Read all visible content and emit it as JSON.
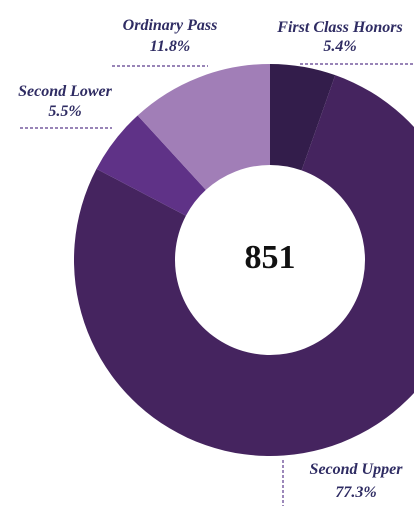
{
  "chart_data": {
    "type": "donut",
    "categories": [
      "First Class Honors",
      "Second Upper",
      "Second Lower",
      "Ordinary Pass"
    ],
    "values": [
      5.4,
      77.3,
      5.5,
      11.8
    ],
    "value_labels": [
      "5.4%",
      "77.3%",
      "5.5%",
      "11.8%"
    ],
    "colors": [
      "#331d4b",
      "#45245f",
      "#5f3287",
      "#a17eb7"
    ],
    "total": 851
  }
}
